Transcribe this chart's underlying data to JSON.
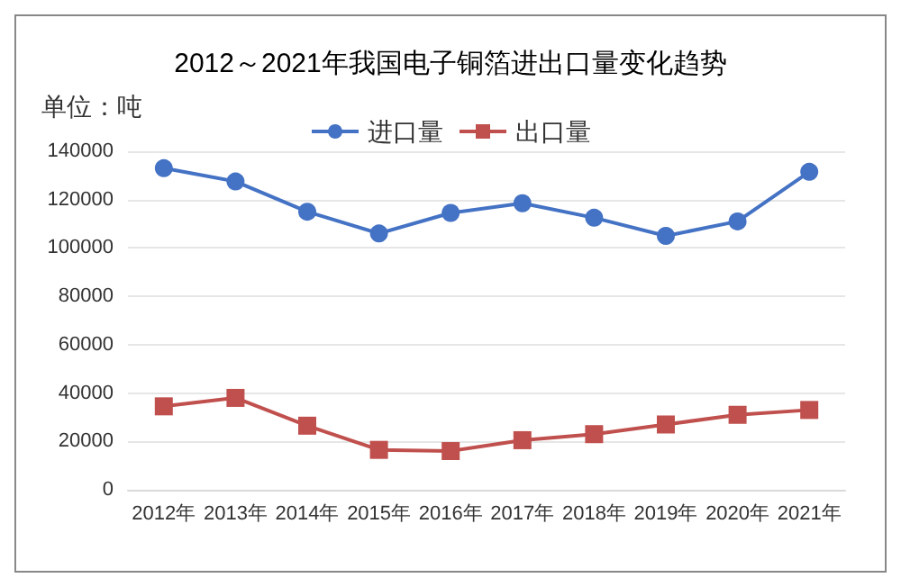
{
  "chart_data": {
    "type": "line",
    "title": "2012～2021年我国电子铜箔进出口量变化趋势",
    "ylabel": "单位：吨",
    "categories": [
      "2012年",
      "2013年",
      "2014年",
      "2015年",
      "2016年",
      "2017年",
      "2018年",
      "2019年",
      "2020年",
      "2021年"
    ],
    "series": [
      {
        "name": "进口量",
        "color": "#4472c4",
        "marker": "circle",
        "values": [
          133000,
          127500,
          115000,
          106000,
          114500,
          118500,
          112500,
          105000,
          111000,
          131500
        ]
      },
      {
        "name": "出口量",
        "color": "#c0504d",
        "marker": "square",
        "values": [
          34500,
          38000,
          26500,
          16500,
          16000,
          20500,
          23000,
          27000,
          31000,
          33000
        ]
      }
    ],
    "ylim": [
      0,
      140000
    ],
    "yticks": [
      0,
      20000,
      40000,
      60000,
      80000,
      100000,
      120000,
      140000
    ],
    "grid": "y",
    "legend": "top",
    "line_style": "solid"
  }
}
